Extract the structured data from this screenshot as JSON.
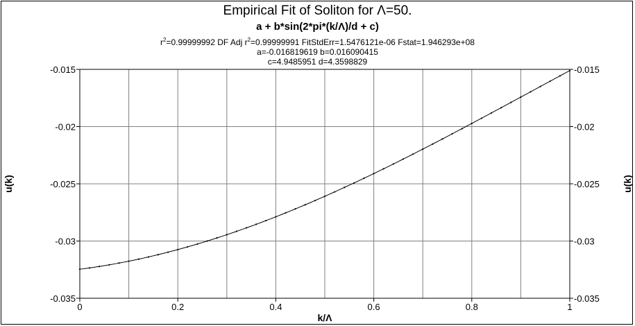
{
  "header": {
    "title": "Empirical Fit of Soliton for Λ=50.",
    "formula": "a + b*sin(2*pi*(k/Λ)/d + c)",
    "stats_r2_label": "r",
    "stats_r2_value": "=0.99999992  DF Adj r",
    "stats_rest": "=0.99999991  FitStdErr=1.5476121e-06  Fstat=1.946293e+08",
    "stats_sup": "2",
    "params_line1": "a=-0.016819619 b=0.016090415",
    "params_line2": "c=4.9485951 d=4.3598829"
  },
  "chart_data": {
    "type": "line",
    "title": "Empirical Fit of Soliton for Λ=50.",
    "xlabel": "k/Λ",
    "ylabel": "u(k)",
    "xlim": [
      0,
      1
    ],
    "ylim": [
      -0.035,
      -0.015
    ],
    "x_ticks": [
      "0",
      "0.2",
      "0.4",
      "0.6",
      "0.8",
      "1"
    ],
    "y_ticks": [
      "-0.015",
      "-0.02",
      "-0.025",
      "-0.03",
      "-0.035"
    ],
    "x_gridlines": [
      0,
      0.1,
      0.2,
      0.3,
      0.4,
      0.5,
      0.6,
      0.7,
      0.8,
      0.9,
      1
    ],
    "y_gridlines": [
      -0.035,
      -0.03,
      -0.025,
      -0.02,
      -0.015
    ],
    "grid": true,
    "markers": "small dots",
    "fit": {
      "a": -0.016819619,
      "b": 0.016090415,
      "c": 4.9485951,
      "d": 4.3598829,
      "n_points": 51
    },
    "series": [
      {
        "x": [
          0,
          0.1,
          0.2,
          0.3,
          0.4,
          0.5,
          0.6,
          0.7,
          0.8,
          0.9,
          1.0
        ],
        "values": [
          -0.03253,
          -0.03186,
          -0.03074,
          -0.02947,
          -0.02786,
          -0.02597,
          -0.02407,
          -0.02199,
          -0.01975,
          -0.01738,
          -0.01496
        ]
      }
    ]
  }
}
